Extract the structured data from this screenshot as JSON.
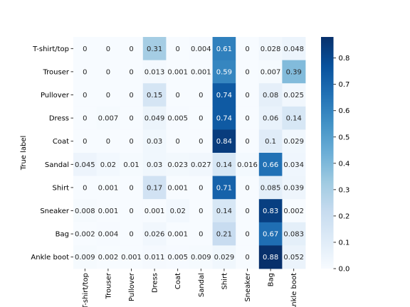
{
  "chart_data": {
    "type": "heatmap",
    "ylabel": "True label",
    "xlabel": "",
    "rows": [
      "T-shirt/top",
      "Trouser",
      "Pullover",
      "Dress",
      "Coat",
      "Sandal",
      "Shirt",
      "Sneaker",
      "Bag",
      "Ankle boot"
    ],
    "columns": [
      "T-shirt/top",
      "Trouser",
      "Pullover",
      "Dress",
      "Coat",
      "Sandal",
      "Shirt",
      "Sneaker",
      "Bag",
      "Ankle boot"
    ],
    "cells": [
      [
        "0",
        "0",
        "0",
        "0.31",
        "0",
        "0.004",
        "0.61",
        "0",
        "0.028",
        "0.048"
      ],
      [
        "0",
        "0",
        "0",
        "0.013",
        "0.001",
        "0.001",
        "0.59",
        "0",
        "0.007",
        "0.39"
      ],
      [
        "0",
        "0",
        "0",
        "0.15",
        "0",
        "0",
        "0.74",
        "0",
        "0.08",
        "0.025"
      ],
      [
        "0",
        "0.007",
        "0",
        "0.049",
        "0.005",
        "0",
        "0.74",
        "0",
        "0.06",
        "0.14"
      ],
      [
        "0",
        "0",
        "0",
        "0.03",
        "0",
        "0",
        "0.84",
        "0",
        "0.1",
        "0.029"
      ],
      [
        "0.045",
        "0.02",
        "0.01",
        "0.03",
        "0.023",
        "0.027",
        "0.14",
        "0.016",
        "0.66",
        "0.034"
      ],
      [
        "0",
        "0.001",
        "0",
        "0.17",
        "0.001",
        "0",
        "0.71",
        "0",
        "0.085",
        "0.039"
      ],
      [
        "0.008",
        "0.001",
        "0",
        "0.001",
        "0.02",
        "0",
        "0.14",
        "0",
        "0.83",
        "0.002"
      ],
      [
        "0.002",
        "0.004",
        "0",
        "0.026",
        "0.001",
        "0",
        "0.21",
        "0",
        "0.67",
        "0.083"
      ],
      [
        "0.009",
        "0.002",
        "0.001",
        "0.011",
        "0.005",
        "0.009",
        "0.029",
        "0",
        "0.88",
        "0.052"
      ]
    ],
    "colorbar": {
      "colormap": "Blues",
      "range": [
        0,
        0.88
      ],
      "ticks": [
        "0.0",
        "0.1",
        "0.2",
        "0.3",
        "0.4",
        "0.5",
        "0.6",
        "0.7",
        "0.8"
      ]
    },
    "annotation_colors": {
      "light_cells": "#262626",
      "dark_cells": "#ffffff"
    }
  }
}
